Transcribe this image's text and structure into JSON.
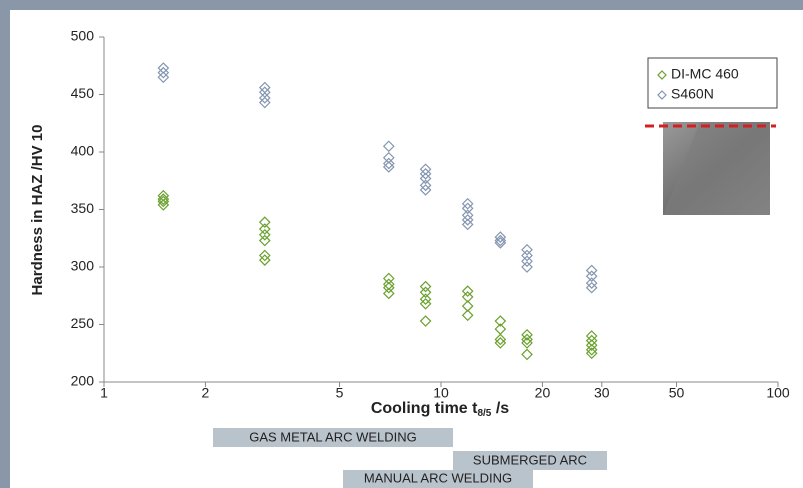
{
  "chart_data": {
    "type": "scatter",
    "ylabel": "Hardness in HAZ /HV 10",
    "xlabel_parts": [
      "Cooling time t",
      "8/5",
      " /s"
    ],
    "xlog": true,
    "xlim": [
      1,
      100
    ],
    "xticks": [
      1,
      2,
      5,
      10,
      20,
      30,
      50,
      100
    ],
    "ylim": [
      200,
      500
    ],
    "yticks": [
      200,
      250,
      300,
      350,
      400,
      450,
      500
    ],
    "legend": "top-right",
    "series": [
      {
        "name": "DI-MC 460",
        "color": "#6aa12e",
        "x": [
          1.5,
          1.5,
          1.5,
          1.5,
          3,
          3,
          3,
          3,
          3,
          3,
          7,
          7,
          7,
          7,
          9,
          9,
          9,
          9,
          9,
          12,
          12,
          12,
          12,
          15,
          15,
          15,
          15,
          18,
          18,
          18,
          18,
          28,
          28,
          28,
          28,
          28
        ],
        "values": [
          362,
          359,
          357,
          354,
          339,
          333,
          328,
          323,
          310,
          306,
          290,
          285,
          282,
          277,
          283,
          278,
          272,
          268,
          253,
          279,
          274,
          266,
          258,
          253,
          246,
          237,
          234,
          241,
          237,
          234,
          224,
          240,
          236,
          232,
          228,
          225
        ]
      },
      {
        "name": "S460N",
        "color": "#8496b0",
        "x": [
          1.5,
          1.5,
          1.5,
          3,
          3,
          3,
          3,
          7,
          7,
          7,
          7,
          9,
          9,
          9,
          9,
          9,
          12,
          12,
          12,
          12,
          12,
          15,
          15,
          15,
          18,
          18,
          18,
          18,
          28,
          28,
          28,
          28
        ],
        "values": [
          473,
          469,
          465,
          456,
          452,
          447,
          443,
          405,
          395,
          390,
          387,
          385,
          381,
          377,
          371,
          367,
          355,
          351,
          345,
          341,
          337,
          326,
          323,
          321,
          315,
          310,
          305,
          300,
          297,
          292,
          286,
          282
        ]
      }
    ],
    "annotations": [
      "GAS METAL ARC WELDING",
      "SUBMERGED ARC",
      "MANUAL ARC WELDING"
    ]
  }
}
